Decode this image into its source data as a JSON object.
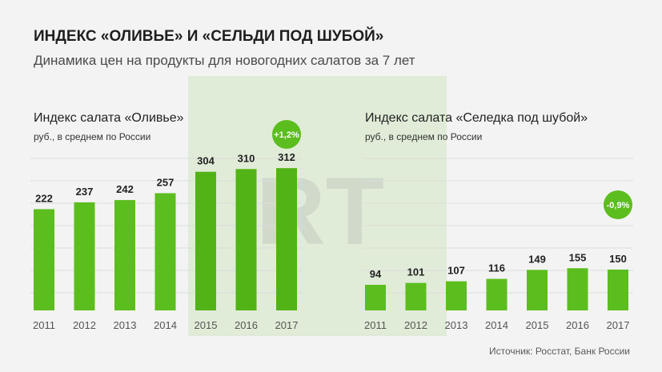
{
  "header": {
    "title": "ИНДЕКС «ОЛИВЬЕ» И «СЕЛЬДИ ПОД ШУБОЙ»",
    "subtitle": "Динамика цен на продукты для новогодних салатов за 7 лет"
  },
  "source": "Источник: Росстат, Банк России",
  "watermark": "RT",
  "colors": {
    "bar": "#5cbd1e",
    "bar_highlight": "#52b316",
    "badge": "#5cbd1e",
    "highlight_band": "#d3e8c4",
    "grid": "#dcdcdc"
  },
  "chart_data": [
    {
      "type": "bar",
      "title": "Индекс салата «Оливье»",
      "unit": "руб., в среднем по России",
      "categories": [
        "2011",
        "2012",
        "2013",
        "2014",
        "2015",
        "2016",
        "2017"
      ],
      "values": [
        222,
        237,
        242,
        257,
        304,
        310,
        312
      ],
      "change_badge": "+1,2%",
      "highlighted_categories": [
        "2015",
        "2016",
        "2017"
      ],
      "grid": true
    },
    {
      "type": "bar",
      "title": "Индекс салата «Селедка под шубой»",
      "unit": "руб., в среднем по России",
      "categories": [
        "2011",
        "2012",
        "2013",
        "2014",
        "2015",
        "2016",
        "2017"
      ],
      "values": [
        94,
        101,
        107,
        116,
        149,
        155,
        150
      ],
      "change_badge": "-0,9%",
      "grid": true
    }
  ]
}
